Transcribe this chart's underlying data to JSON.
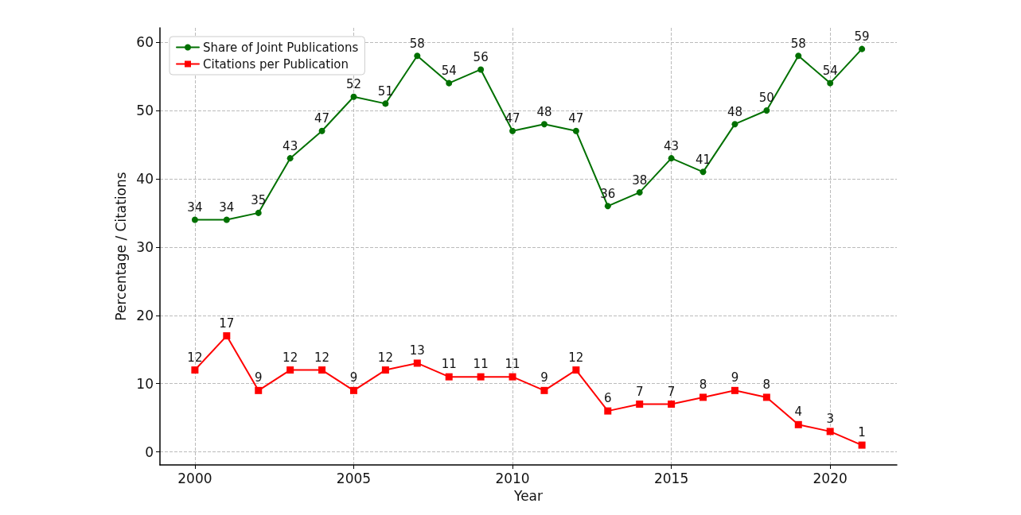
{
  "chart_data": {
    "type": "line",
    "xlabel": "Year",
    "ylabel": "Percentage / Citations",
    "x": [
      2000,
      2001,
      2002,
      2003,
      2004,
      2005,
      2006,
      2007,
      2008,
      2009,
      2010,
      2011,
      2012,
      2013,
      2014,
      2015,
      2016,
      2017,
      2018,
      2019,
      2020,
      2021
    ],
    "series": [
      {
        "name": "Share of Joint Publications",
        "color": "#007000",
        "marker": "circle",
        "values": [
          34,
          34,
          35,
          43,
          47,
          52,
          51,
          58,
          54,
          56,
          47,
          48,
          47,
          36,
          38,
          43,
          41,
          48,
          50,
          58,
          54,
          59
        ]
      },
      {
        "name": "Citations per Publication",
        "color": "#ff0000",
        "marker": "square",
        "values": [
          12,
          17,
          9,
          12,
          12,
          9,
          12,
          13,
          11,
          11,
          11,
          9,
          12,
          6,
          7,
          7,
          8,
          9,
          8,
          4,
          3,
          1
        ]
      }
    ],
    "xlim": [
      1998.9,
      2022.1
    ],
    "xticks": [
      2000,
      2005,
      2010,
      2015,
      2020
    ],
    "ylim": [
      -1.9,
      62.1
    ],
    "yticks": [
      0,
      10,
      20,
      30,
      40,
      50,
      60
    ],
    "grid": true,
    "legend": "top left",
    "line_style": "solid",
    "data_labels": true
  }
}
